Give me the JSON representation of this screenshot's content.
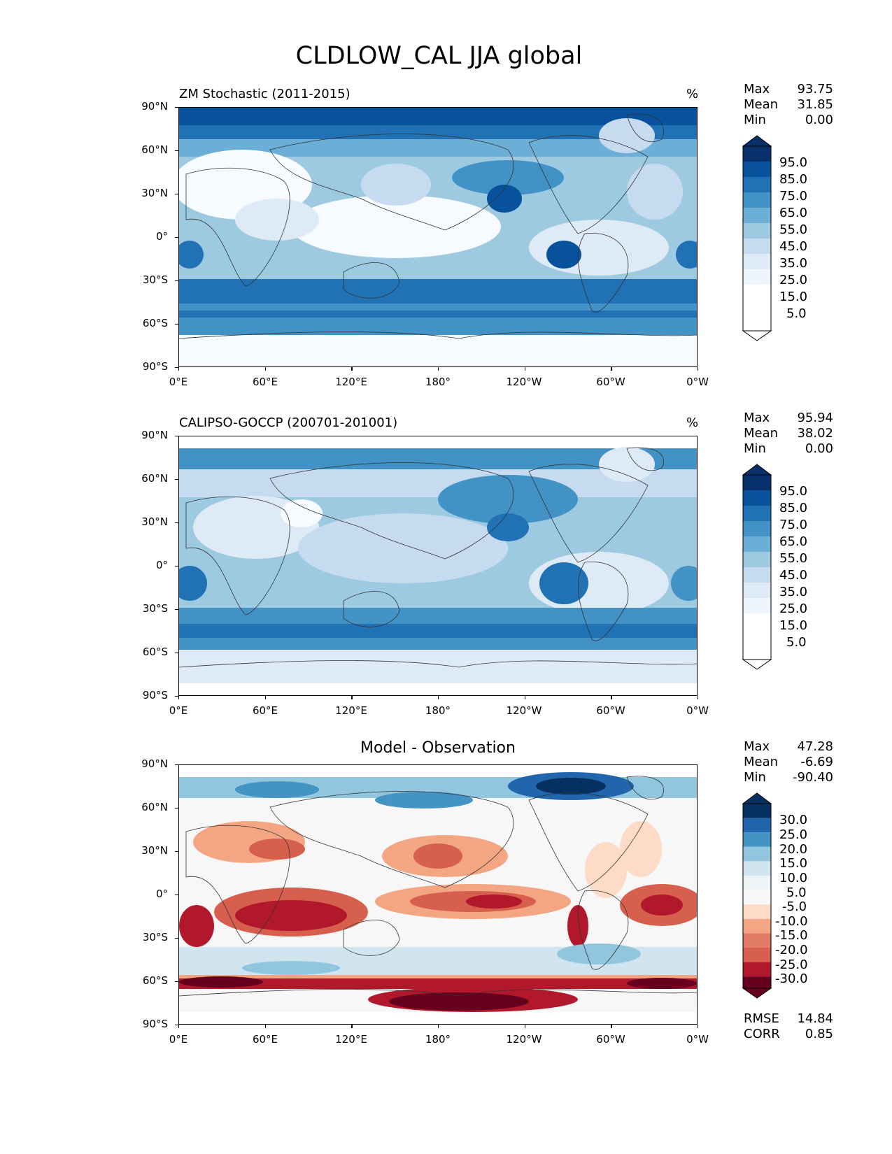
{
  "suptitle": "CLDLOW_CAL JJA global",
  "units": "%",
  "axes": {
    "lat_ticks": [
      "90°N",
      "60°N",
      "30°N",
      "0°",
      "30°S",
      "60°S",
      "90°S"
    ],
    "lon_ticks": [
      "0°E",
      "60°E",
      "120°E",
      "180°",
      "120°W",
      "60°W",
      "0°W"
    ]
  },
  "panels": [
    {
      "title": "ZM Stochastic (2011-2015)",
      "stats": [
        {
          "k": "Max",
          "v": "93.75"
        },
        {
          "k": "Mean",
          "v": "31.85"
        },
        {
          "k": "Min",
          "v": "0.00"
        }
      ],
      "colorbar_labels": [
        "95.0",
        "85.0",
        "75.0",
        "65.0",
        "55.0",
        "45.0",
        "35.0",
        "25.0",
        "15.0",
        "5.0"
      ]
    },
    {
      "title": "CALIPSO-GOCCP (200701-201001)",
      "stats": [
        {
          "k": "Max",
          "v": "95.94"
        },
        {
          "k": "Mean",
          "v": "38.02"
        },
        {
          "k": "Min",
          "v": "0.00"
        }
      ],
      "colorbar_labels": [
        "95.0",
        "85.0",
        "75.0",
        "65.0",
        "55.0",
        "45.0",
        "35.0",
        "25.0",
        "15.0",
        "5.0"
      ]
    },
    {
      "title": "Model - Observation",
      "stats": [
        {
          "k": "Max",
          "v": "47.28"
        },
        {
          "k": "Mean",
          "v": "-6.69"
        },
        {
          "k": "Min",
          "v": "-90.40"
        }
      ],
      "colorbar_labels": [
        "30.0",
        "25.0",
        "20.0",
        "15.0",
        "10.0",
        "5.0",
        "-5.0",
        "-10.0",
        "-15.0",
        "-20.0",
        "-25.0",
        "-30.0"
      ],
      "extra_stats": [
        {
          "k": "RMSE",
          "v": "14.84"
        },
        {
          "k": "CORR",
          "v": "0.85"
        }
      ]
    }
  ],
  "colors": {
    "blues": [
      "#f7fbff",
      "#deebf7",
      "#c6dbef",
      "#9ecae1",
      "#6baed6",
      "#4292c6",
      "#2171b5",
      "#08519c",
      "#08306b"
    ],
    "diverging": [
      "#67001f",
      "#b2182b",
      "#d6604d",
      "#f4a582",
      "#fddbc7",
      "#f7f7f7",
      "#d1e5f0",
      "#92c5de",
      "#4393c3",
      "#2166ac",
      "#053061"
    ]
  }
}
